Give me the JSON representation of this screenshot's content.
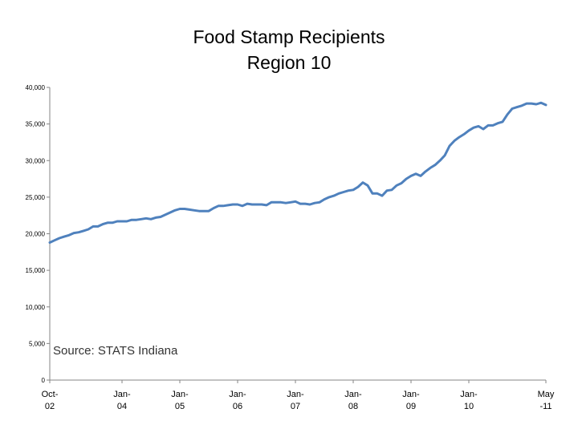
{
  "chart_data": {
    "type": "line",
    "title_line1": "Food Stamp Recipients",
    "title_line2": "Region 10",
    "annotation": "Source:  STATS Indiana",
    "ylim": [
      0,
      40000
    ],
    "y_ticks": [
      "0",
      "5,000",
      "10,000",
      "15,000",
      "20,000",
      "25,000",
      "30,000",
      "35,000",
      "40,000"
    ],
    "y_tick_values": [
      0,
      5000,
      10000,
      15000,
      20000,
      25000,
      30000,
      35000,
      40000
    ],
    "x_ticks": [
      {
        "line1": "Oct-",
        "line2": "02",
        "t": 0
      },
      {
        "line1": "Jan-",
        "line2": "04",
        "t": 15
      },
      {
        "line1": "Jan-",
        "line2": "05",
        "t": 27
      },
      {
        "line1": "Jan-",
        "line2": "06",
        "t": 39
      },
      {
        "line1": "Jan-",
        "line2": "07",
        "t": 51
      },
      {
        "line1": "Jan-",
        "line2": "08",
        "t": 63
      },
      {
        "line1": "Jan-",
        "line2": "09",
        "t": 75
      },
      {
        "line1": "Jan-",
        "line2": "10",
        "t": 87
      },
      {
        "line1": "May",
        "line2": "-11",
        "t": 103
      }
    ],
    "x_range": [
      0,
      103
    ],
    "series": [
      {
        "name": "Food Stamp Recipients",
        "color": "#4f81bd",
        "points": [
          [
            0,
            18800
          ],
          [
            1,
            19100
          ],
          [
            2,
            19400
          ],
          [
            3,
            19600
          ],
          [
            4,
            19800
          ],
          [
            5,
            20100
          ],
          [
            6,
            20200
          ],
          [
            7,
            20400
          ],
          [
            8,
            20600
          ],
          [
            9,
            21000
          ],
          [
            10,
            21000
          ],
          [
            11,
            21300
          ],
          [
            12,
            21500
          ],
          [
            13,
            21500
          ],
          [
            14,
            21700
          ],
          [
            15,
            21700
          ],
          [
            16,
            21700
          ],
          [
            17,
            21900
          ],
          [
            18,
            21900
          ],
          [
            19,
            22000
          ],
          [
            20,
            22100
          ],
          [
            21,
            22000
          ],
          [
            22,
            22200
          ],
          [
            23,
            22300
          ],
          [
            24,
            22600
          ],
          [
            25,
            22900
          ],
          [
            26,
            23200
          ],
          [
            27,
            23400
          ],
          [
            28,
            23400
          ],
          [
            29,
            23300
          ],
          [
            30,
            23200
          ],
          [
            31,
            23100
          ],
          [
            32,
            23100
          ],
          [
            33,
            23100
          ],
          [
            34,
            23500
          ],
          [
            35,
            23800
          ],
          [
            36,
            23800
          ],
          [
            37,
            23900
          ],
          [
            38,
            24000
          ],
          [
            39,
            24000
          ],
          [
            40,
            23800
          ],
          [
            41,
            24100
          ],
          [
            42,
            24000
          ],
          [
            43,
            24000
          ],
          [
            44,
            24000
          ],
          [
            45,
            23900
          ],
          [
            46,
            24300
          ],
          [
            47,
            24300
          ],
          [
            48,
            24300
          ],
          [
            49,
            24200
          ],
          [
            50,
            24300
          ],
          [
            51,
            24400
          ],
          [
            52,
            24100
          ],
          [
            53,
            24100
          ],
          [
            54,
            24000
          ],
          [
            55,
            24200
          ],
          [
            56,
            24300
          ],
          [
            57,
            24700
          ],
          [
            58,
            25000
          ],
          [
            59,
            25200
          ],
          [
            60,
            25500
          ],
          [
            61,
            25700
          ],
          [
            62,
            25900
          ],
          [
            63,
            26000
          ],
          [
            64,
            26400
          ],
          [
            65,
            27000
          ],
          [
            66,
            26600
          ],
          [
            67,
            25500
          ],
          [
            68,
            25500
          ],
          [
            69,
            25200
          ],
          [
            70,
            25900
          ],
          [
            71,
            26000
          ],
          [
            72,
            26600
          ],
          [
            73,
            26900
          ],
          [
            74,
            27500
          ],
          [
            75,
            27900
          ],
          [
            76,
            28200
          ],
          [
            77,
            27900
          ],
          [
            78,
            28500
          ],
          [
            79,
            29000
          ],
          [
            80,
            29400
          ],
          [
            81,
            30000
          ],
          [
            82,
            30700
          ],
          [
            83,
            32000
          ],
          [
            84,
            32700
          ],
          [
            85,
            33200
          ],
          [
            86,
            33600
          ],
          [
            87,
            34100
          ],
          [
            88,
            34500
          ],
          [
            89,
            34700
          ],
          [
            90,
            34300
          ],
          [
            91,
            34800
          ],
          [
            92,
            34800
          ],
          [
            93,
            35100
          ],
          [
            94,
            35300
          ],
          [
            95,
            36300
          ],
          [
            96,
            37100
          ],
          [
            97,
            37300
          ],
          [
            98,
            37500
          ],
          [
            99,
            37800
          ],
          [
            100,
            37800
          ],
          [
            101,
            37700
          ],
          [
            102,
            37900
          ],
          [
            103,
            37600
          ]
        ]
      }
    ]
  }
}
